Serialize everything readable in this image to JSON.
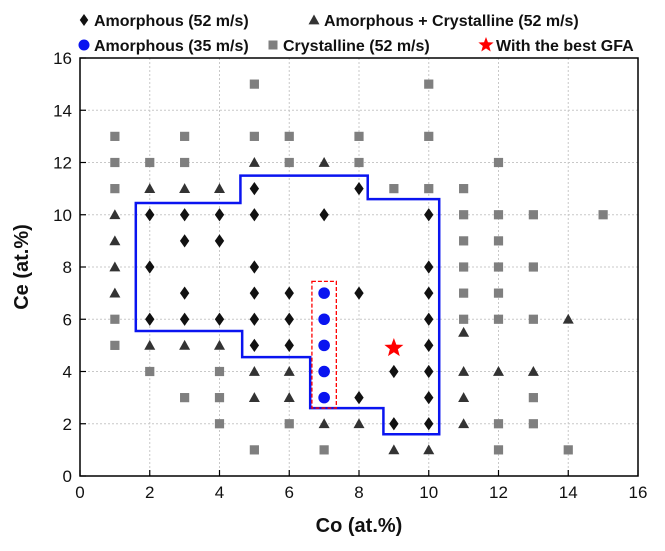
{
  "chart_data": {
    "type": "scatter",
    "xlabel": "Co (at.%)",
    "ylabel": "Ce (at.%)",
    "xlim": [
      0,
      16
    ],
    "ylim": [
      0,
      16
    ],
    "xticks": [
      "0",
      "2",
      "4",
      "6",
      "8",
      "10",
      "12",
      "14",
      "16"
    ],
    "yticks": [
      "0",
      "2",
      "4",
      "6",
      "8",
      "10",
      "12",
      "14",
      "16"
    ],
    "grid": true,
    "legend_position": "top",
    "series": [
      {
        "name": "Amorphous (52 m/s)",
        "marker": "diamond",
        "color": "#111111",
        "points": [
          [
            2,
            10
          ],
          [
            3,
            10
          ],
          [
            4,
            10
          ],
          [
            3,
            9
          ],
          [
            4,
            9
          ],
          [
            5,
            11
          ],
          [
            5,
            10
          ],
          [
            7,
            10
          ],
          [
            8,
            11
          ],
          [
            2,
            8
          ],
          [
            5,
            8
          ],
          [
            3,
            7
          ],
          [
            5,
            7
          ],
          [
            6,
            7
          ],
          [
            8,
            7
          ],
          [
            2,
            6
          ],
          [
            3,
            6
          ],
          [
            4,
            6
          ],
          [
            5,
            6
          ],
          [
            6,
            6
          ],
          [
            5,
            5
          ],
          [
            6,
            5
          ],
          [
            10,
            10
          ],
          [
            10,
            8
          ],
          [
            10,
            7
          ],
          [
            10,
            6
          ],
          [
            10,
            5
          ],
          [
            10,
            4
          ],
          [
            9,
            4
          ],
          [
            8,
            3
          ],
          [
            10,
            3
          ],
          [
            9,
            2
          ],
          [
            10,
            2
          ]
        ]
      },
      {
        "name": "Amorphous + Crystalline (52 m/s)",
        "marker": "triangle",
        "color": "#333333",
        "points": [
          [
            2,
            11
          ],
          [
            3,
            11
          ],
          [
            4,
            11
          ],
          [
            5,
            12
          ],
          [
            7,
            12
          ],
          [
            1,
            10
          ],
          [
            1,
            9
          ],
          [
            1,
            8
          ],
          [
            1,
            7
          ],
          [
            2,
            5
          ],
          [
            3,
            5
          ],
          [
            4,
            5
          ],
          [
            5,
            4
          ],
          [
            6,
            4
          ],
          [
            5,
            3
          ],
          [
            6,
            3
          ],
          [
            7,
            2
          ],
          [
            8,
            2
          ],
          [
            9,
            1
          ],
          [
            10,
            1
          ],
          [
            11,
            2
          ],
          [
            11,
            3
          ],
          [
            11,
            4
          ],
          [
            11,
            5.5
          ],
          [
            12,
            4
          ],
          [
            13,
            4
          ],
          [
            14,
            6
          ]
        ]
      },
      {
        "name": "Amorphous (35 m/s)",
        "marker": "circle",
        "color": "#0a14f0",
        "points": [
          [
            7,
            7
          ],
          [
            7,
            6
          ],
          [
            7,
            5
          ],
          [
            7,
            4
          ],
          [
            7,
            3
          ]
        ]
      },
      {
        "name": "Crystalline (52 m/s)",
        "marker": "square",
        "color": "#7f7f7f",
        "points": [
          [
            1,
            13
          ],
          [
            1,
            12
          ],
          [
            1,
            11
          ],
          [
            1,
            6
          ],
          [
            1,
            5
          ],
          [
            2,
            12
          ],
          [
            3,
            13
          ],
          [
            3,
            12
          ],
          [
            5,
            15
          ],
          [
            5,
            13
          ],
          [
            6,
            13
          ],
          [
            6,
            12
          ],
          [
            8,
            13
          ],
          [
            8,
            12
          ],
          [
            9,
            11
          ],
          [
            10,
            15
          ],
          [
            10,
            13
          ],
          [
            10,
            11
          ],
          [
            11,
            11
          ],
          [
            11,
            10
          ],
          [
            11,
            9
          ],
          [
            11,
            8
          ],
          [
            11,
            7
          ],
          [
            11,
            6
          ],
          [
            12,
            12
          ],
          [
            12,
            10
          ],
          [
            12,
            9
          ],
          [
            12,
            8
          ],
          [
            12,
            7
          ],
          [
            12,
            6
          ],
          [
            12,
            2
          ],
          [
            12,
            1
          ],
          [
            13,
            10
          ],
          [
            13,
            8
          ],
          [
            13,
            6
          ],
          [
            13,
            3
          ],
          [
            13,
            2
          ],
          [
            14,
            1
          ],
          [
            15,
            10
          ],
          [
            2,
            4
          ],
          [
            3,
            3
          ],
          [
            4,
            4
          ],
          [
            4,
            3
          ],
          [
            4,
            2
          ],
          [
            5,
            1
          ],
          [
            6,
            2
          ],
          [
            7,
            1
          ]
        ]
      },
      {
        "name": "With the best GFA",
        "marker": "star",
        "color": "#ff0000",
        "points": [
          [
            9,
            4.9
          ]
        ]
      }
    ]
  }
}
